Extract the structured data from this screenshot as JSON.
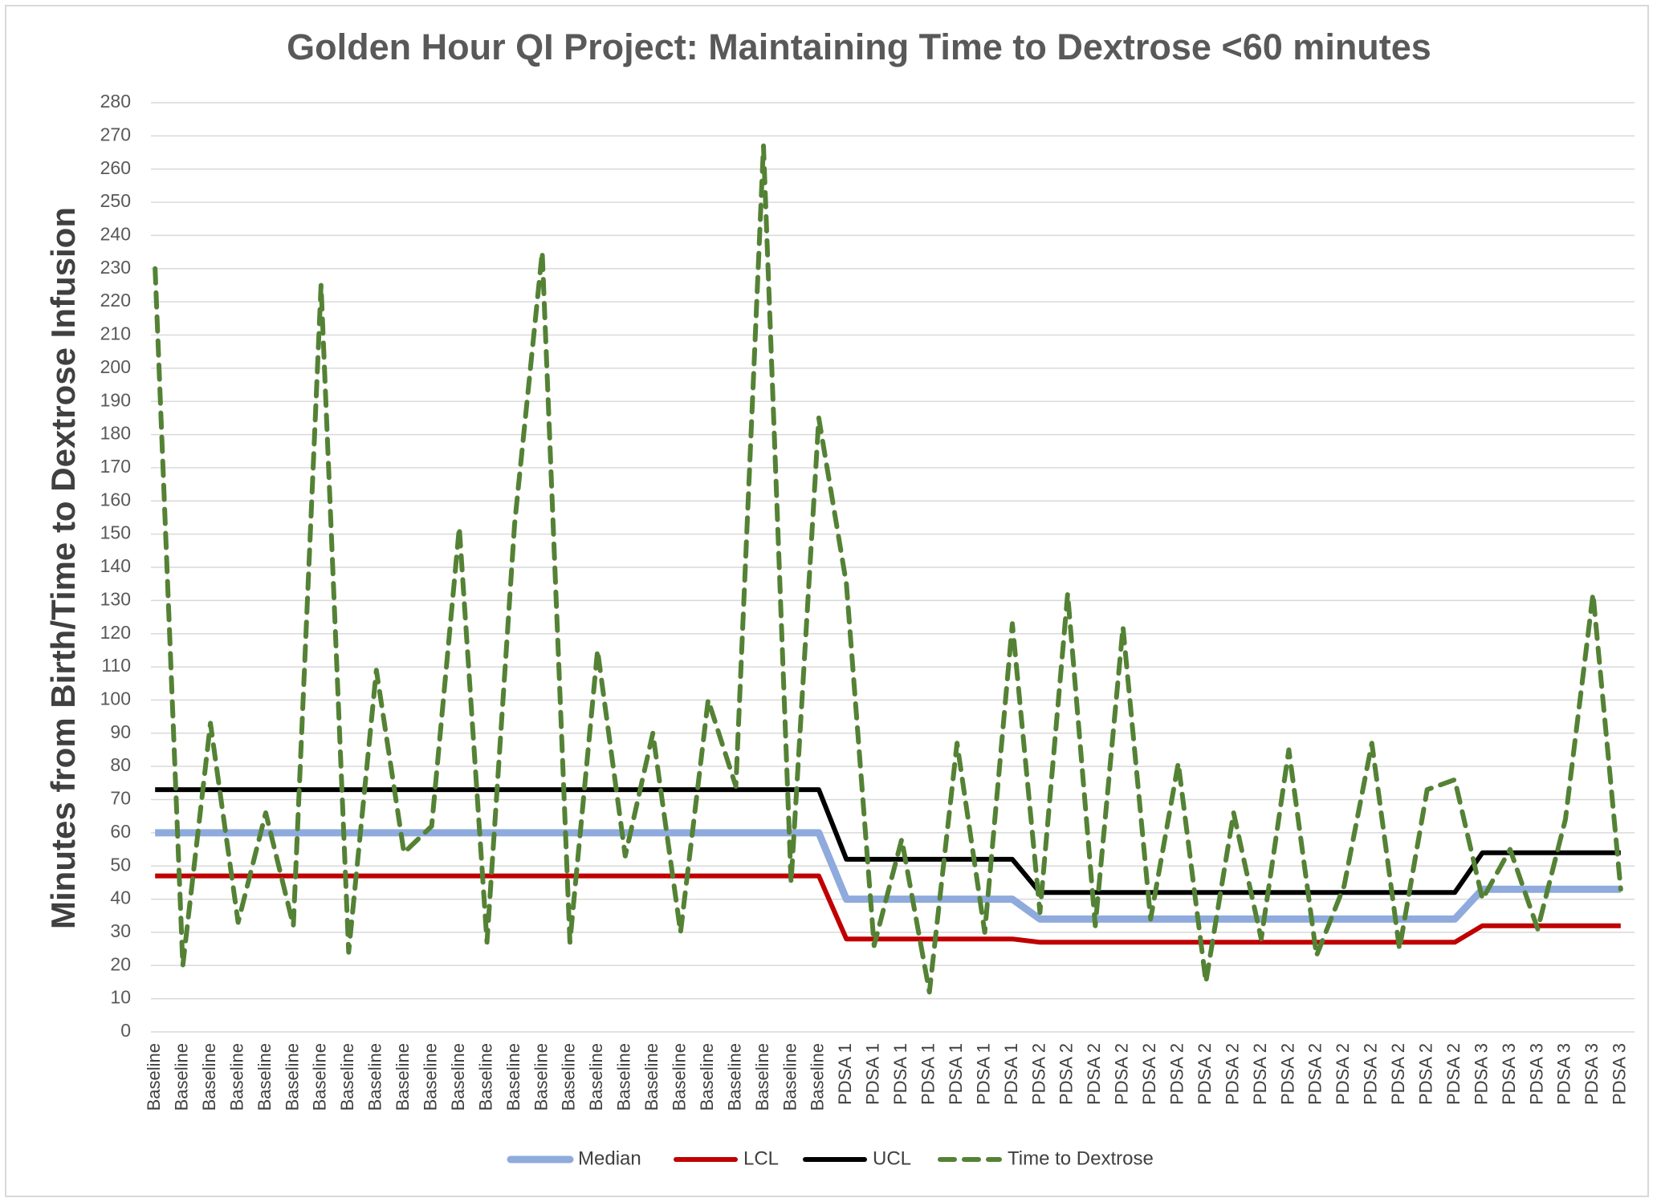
{
  "chart_data": {
    "type": "line",
    "title": "Golden Hour QI Project: Maintaining Time to Dextrose <60 minutes",
    "y_label": "Minutes from Birth/Time to Dextrose Infusion",
    "categories": [
      "Baseline",
      "Baseline",
      "Baseline",
      "Baseline",
      "Baseline",
      "Baseline",
      "Baseline",
      "Baseline",
      "Baseline",
      "Baseline",
      "Baseline",
      "Baseline",
      "Baseline",
      "Baseline",
      "Baseline",
      "Baseline",
      "Baseline",
      "Baseline",
      "Baseline",
      "Baseline",
      "Baseline",
      "Baseline",
      "Baseline",
      "Baseline",
      "Baseline",
      "PDSA 1",
      "PDSA 1",
      "PDSA 1",
      "PDSA 1",
      "PDSA 1",
      "PDSA 1",
      "PDSA 1",
      "PDSA 2",
      "PDSA 2",
      "PDSA 2",
      "PDSA 2",
      "PDSA 2",
      "PDSA 2",
      "PDSA 2",
      "PDSA 2",
      "PDSA 2",
      "PDSA 2",
      "PDSA 2",
      "PDSA 2",
      "PDSA 2",
      "PDSA 2",
      "PDSA 2",
      "PDSA 2",
      "PDSA 3",
      "PDSA 3",
      "PDSA 3",
      "PDSA 3",
      "PDSA 3",
      "PDSA 3"
    ],
    "series": [
      {
        "name": "Median",
        "color": "#8faadc",
        "dashed": false,
        "values": [
          60,
          60,
          60,
          60,
          60,
          60,
          60,
          60,
          60,
          60,
          60,
          60,
          60,
          60,
          60,
          60,
          60,
          60,
          60,
          60,
          60,
          60,
          60,
          60,
          60,
          40,
          40,
          40,
          40,
          40,
          40,
          40,
          34,
          34,
          34,
          34,
          34,
          34,
          34,
          34,
          34,
          34,
          34,
          34,
          34,
          34,
          34,
          34,
          43,
          43,
          43,
          43,
          43,
          43
        ]
      },
      {
        "name": "LCL",
        "color": "#c00000",
        "dashed": false,
        "values": [
          47,
          47,
          47,
          47,
          47,
          47,
          47,
          47,
          47,
          47,
          47,
          47,
          47,
          47,
          47,
          47,
          47,
          47,
          47,
          47,
          47,
          47,
          47,
          47,
          47,
          28,
          28,
          28,
          28,
          28,
          28,
          28,
          27,
          27,
          27,
          27,
          27,
          27,
          27,
          27,
          27,
          27,
          27,
          27,
          27,
          27,
          27,
          27,
          32,
          32,
          32,
          32,
          32,
          32
        ]
      },
      {
        "name": "UCL",
        "color": "#000000",
        "dashed": false,
        "values": [
          73,
          73,
          73,
          73,
          73,
          73,
          73,
          73,
          73,
          73,
          73,
          73,
          73,
          73,
          73,
          73,
          73,
          73,
          73,
          73,
          73,
          73,
          73,
          73,
          73,
          52,
          52,
          52,
          52,
          52,
          52,
          52,
          42,
          42,
          42,
          42,
          42,
          42,
          42,
          42,
          42,
          42,
          42,
          42,
          42,
          42,
          42,
          42,
          54,
          54,
          54,
          54,
          54,
          54
        ]
      },
      {
        "name": "Time to Dextrose",
        "color": "#548235",
        "dashed": true,
        "values": [
          230,
          20,
          93,
          33,
          66,
          32,
          225,
          24,
          109,
          54,
          62,
          152,
          27,
          153,
          235,
          27,
          115,
          53,
          90,
          30,
          100,
          74,
          267,
          45,
          185,
          135,
          26,
          58,
          12,
          87,
          30,
          123,
          36,
          132,
          32,
          122,
          34,
          81,
          15,
          66,
          28,
          85,
          23,
          44,
          87,
          25,
          73,
          76,
          40,
          55,
          31,
          64,
          132,
          43
        ]
      }
    ],
    "ylim": [
      0,
      280
    ],
    "yticks": [
      0,
      10,
      20,
      30,
      40,
      50,
      60,
      70,
      80,
      90,
      100,
      110,
      120,
      130,
      140,
      150,
      160,
      170,
      180,
      190,
      200,
      210,
      220,
      230,
      240,
      250,
      260,
      270,
      280
    ],
    "grid": true,
    "legend": "bottom"
  }
}
